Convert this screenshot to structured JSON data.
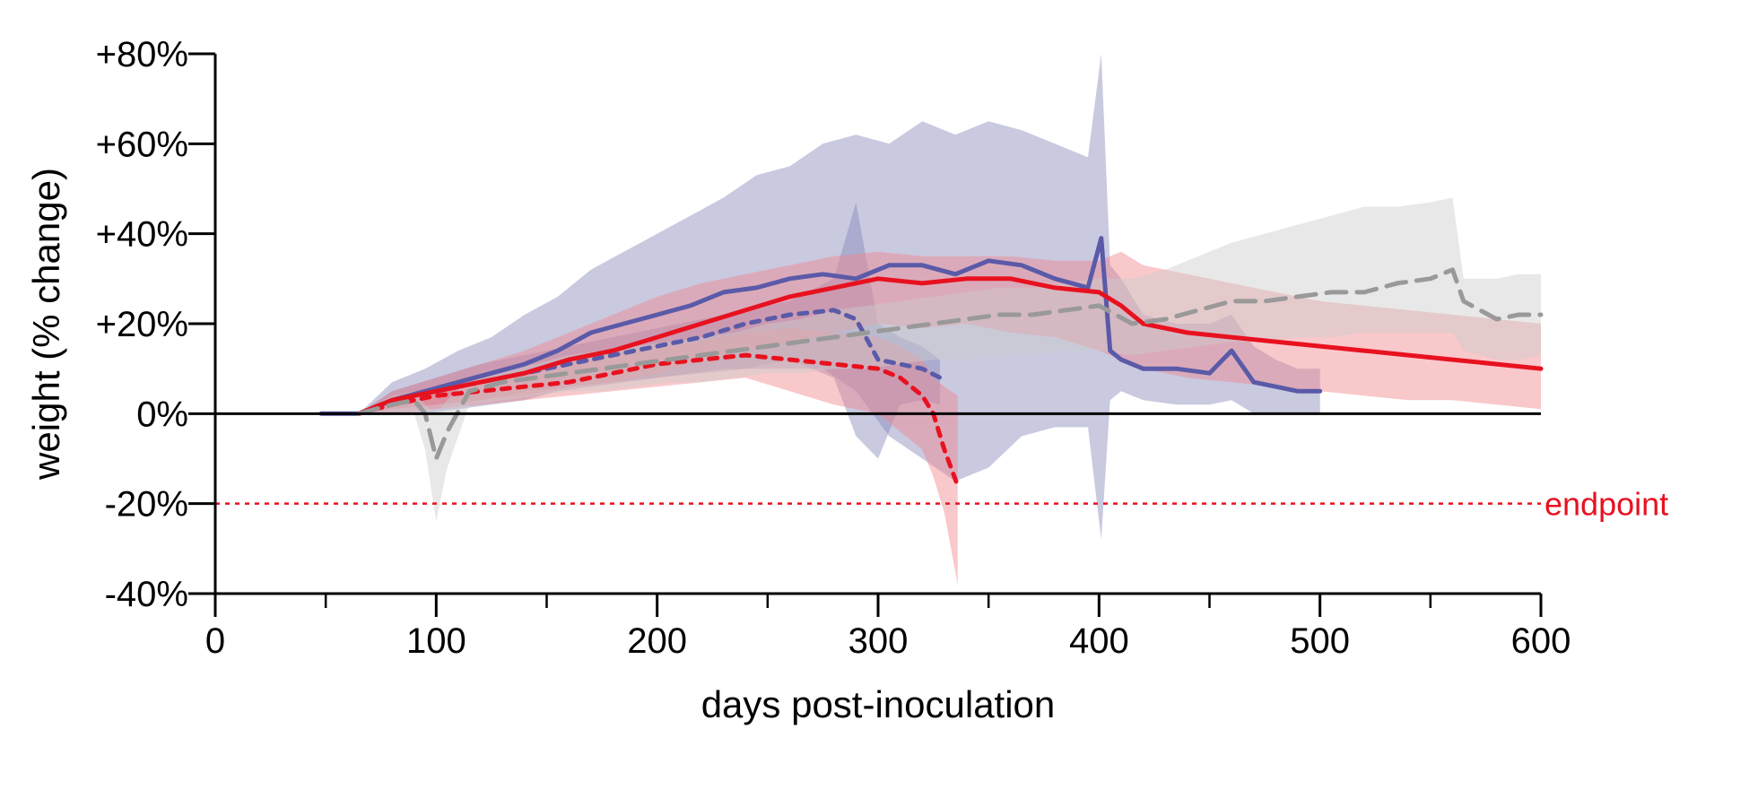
{
  "chart_data": {
    "type": "line",
    "xlabel": "days post-inoculation",
    "ylabel": "weight (% change)",
    "xlim": [
      0,
      600
    ],
    "ylim": [
      -40,
      80
    ],
    "x_major_ticks": [
      0,
      100,
      200,
      300,
      400,
      500,
      600
    ],
    "x_minor_ticks": [
      50,
      150,
      250,
      350,
      450,
      550
    ],
    "x_tick_labels": [
      "0",
      "100",
      "200",
      "300",
      "400",
      "500",
      "600"
    ],
    "y_ticks": [
      -40,
      -20,
      0,
      20,
      40,
      60,
      80
    ],
    "y_tick_labels": [
      "-40%",
      "-20%",
      "0%",
      "+20%",
      "+40%",
      "+60%",
      "+80%"
    ],
    "grid": false,
    "legend": "none",
    "zero_line": 0,
    "reference_line": {
      "y": -20,
      "label": "endpoint",
      "color": "#e8111f",
      "style": "dotted"
    },
    "series": [
      {
        "color": "#5a5aa8",
        "band_color": "#8888bb",
        "style": "solid",
        "x": [
          48,
          65,
          80,
          95,
          110,
          125,
          140,
          155,
          170,
          185,
          200,
          215,
          230,
          245,
          260,
          275,
          290,
          305,
          320,
          335,
          350,
          365,
          380,
          395,
          401,
          405,
          410,
          420,
          435,
          450,
          460,
          470,
          480,
          490,
          500
        ],
        "y": [
          0,
          0,
          3,
          5,
          7,
          9,
          11,
          14,
          18,
          20,
          22,
          24,
          27,
          28,
          30,
          31,
          30,
          33,
          33,
          31,
          34,
          33,
          30,
          28,
          39,
          14,
          12,
          10,
          10,
          9,
          14,
          7,
          6,
          5,
          5
        ],
        "low": [
          0,
          0,
          0,
          0,
          1,
          2,
          3,
          5,
          6,
          7,
          8,
          9,
          10,
          10,
          10,
          10,
          5,
          -5,
          -10,
          -15,
          -12,
          -5,
          -3,
          -3,
          -28,
          3,
          5,
          3,
          2,
          2,
          3,
          0,
          0,
          0,
          0
        ],
        "high": [
          0,
          0,
          7,
          10,
          14,
          17,
          22,
          26,
          32,
          36,
          40,
          44,
          48,
          53,
          55,
          60,
          62,
          60,
          65,
          62,
          65,
          63,
          60,
          57,
          80,
          33,
          30,
          22,
          20,
          20,
          22,
          15,
          12,
          10,
          10
        ]
      },
      {
        "color": "#5a5aa8",
        "band_color": "#8888bb",
        "style": "dotted",
        "x": [
          65,
          80,
          100,
          120,
          140,
          160,
          180,
          200,
          220,
          240,
          260,
          280,
          290,
          300,
          310,
          320,
          328
        ],
        "y": [
          0,
          3,
          5,
          7,
          9,
          11,
          13,
          15,
          17,
          20,
          22,
          23,
          21,
          12,
          11,
          10,
          8
        ],
        "low": [
          0,
          1,
          2,
          3,
          5,
          6,
          7,
          8,
          9,
          10,
          12,
          8,
          -5,
          -10,
          2,
          3,
          2
        ],
        "high": [
          0,
          5,
          8,
          11,
          13,
          15,
          17,
          19,
          21,
          23,
          25,
          30,
          47,
          20,
          17,
          15,
          12
        ]
      },
      {
        "color": "#e8111f",
        "band_color": "#f2848c",
        "style": "solid",
        "x": [
          65,
          80,
          100,
          120,
          140,
          160,
          180,
          200,
          220,
          240,
          260,
          280,
          300,
          320,
          340,
          360,
          380,
          400,
          410,
          420,
          440,
          460,
          480,
          500,
          520,
          540,
          560,
          580,
          600
        ],
        "y": [
          0,
          3,
          5,
          7,
          9,
          12,
          14,
          17,
          20,
          23,
          26,
          28,
          30,
          29,
          30,
          30,
          28,
          27,
          24,
          20,
          18,
          17,
          16,
          15,
          14,
          13,
          12,
          11,
          10
        ],
        "low": [
          0,
          1,
          2,
          3,
          4,
          6,
          7,
          9,
          12,
          14,
          16,
          18,
          20,
          19,
          20,
          18,
          17,
          14,
          12,
          10,
          8,
          7,
          6,
          5,
          4,
          3,
          3,
          2,
          1
        ],
        "high": [
          0,
          5,
          8,
          11,
          14,
          18,
          22,
          26,
          29,
          31,
          33,
          35,
          36,
          35,
          35,
          35,
          34,
          34,
          36,
          33,
          31,
          29,
          27,
          25,
          24,
          23,
          22,
          21,
          20
        ]
      },
      {
        "color": "#e8111f",
        "band_color": "#f2848c",
        "style": "dotted",
        "x": [
          65,
          80,
          100,
          120,
          140,
          160,
          180,
          200,
          220,
          240,
          260,
          280,
          300,
          310,
          320,
          325,
          330,
          333,
          336
        ],
        "y": [
          0,
          2,
          4,
          5,
          6,
          7,
          9,
          11,
          12,
          13,
          12,
          11,
          10,
          8,
          4,
          0,
          -8,
          -12,
          -16
        ],
        "low": [
          0,
          0,
          1,
          2,
          3,
          4,
          5,
          6,
          7,
          8,
          5,
          2,
          0,
          -4,
          -8,
          -14,
          -22,
          -30,
          -38
        ],
        "high": [
          0,
          4,
          6,
          8,
          9,
          11,
          13,
          15,
          16,
          18,
          19,
          18,
          17,
          15,
          12,
          8,
          6,
          5,
          4
        ]
      },
      {
        "color": "#999999",
        "band_color": "#cccccc",
        "style": "dashed",
        "x": [
          65,
          80,
          90,
          95,
          100,
          105,
          115,
          130,
          145,
          160,
          175,
          190,
          205,
          220,
          235,
          250,
          265,
          280,
          295,
          310,
          325,
          340,
          355,
          370,
          385,
          400,
          415,
          430,
          445,
          460,
          475,
          490,
          505,
          520,
          535,
          550,
          560,
          565,
          580,
          590,
          600
        ],
        "y": [
          0,
          2,
          3,
          0,
          -10,
          -4,
          5,
          7,
          8,
          9,
          10,
          11,
          12,
          13,
          14,
          15,
          16,
          17,
          18,
          19,
          20,
          21,
          22,
          22,
          23,
          24,
          20,
          21,
          23,
          25,
          25,
          26,
          27,
          27,
          29,
          30,
          32,
          25,
          21,
          22,
          22
        ],
        "low": [
          0,
          0,
          0,
          -8,
          -24,
          -12,
          2,
          3,
          4,
          5,
          5,
          6,
          7,
          7,
          8,
          9,
          9,
          10,
          10,
          11,
          12,
          12,
          13,
          13,
          14,
          14,
          13,
          14,
          15,
          16,
          16,
          17,
          17,
          18,
          18,
          18,
          18,
          14,
          12,
          12,
          13
        ],
        "high": [
          0,
          4,
          5,
          2,
          0,
          3,
          8,
          10,
          11,
          13,
          14,
          15,
          16,
          17,
          18,
          20,
          21,
          23,
          24,
          25,
          26,
          27,
          28,
          28,
          29,
          30,
          30,
          32,
          35,
          38,
          40,
          42,
          44,
          46,
          46,
          47,
          48,
          30,
          30,
          31,
          31
        ]
      }
    ]
  }
}
